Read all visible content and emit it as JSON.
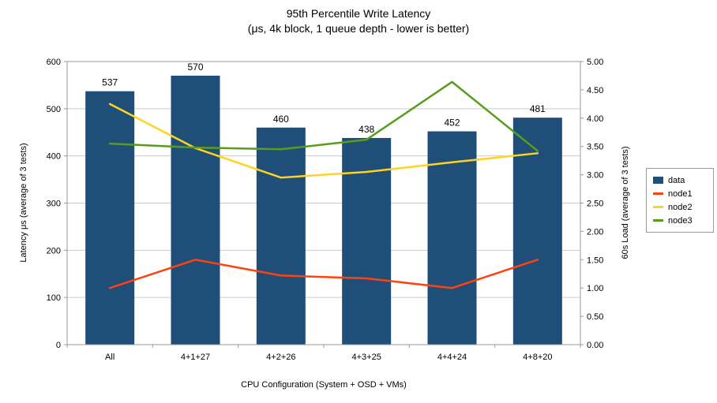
{
  "title": "95th Percentile Write Latency",
  "subtitle": "(μs, 4k block, 1 queue depth - lower is better)",
  "chart_data": {
    "type": "bar",
    "combo": "bar+line",
    "categories": [
      "All",
      "4+1+27",
      "4+2+26",
      "4+3+25",
      "4+4+24",
      "4+8+20"
    ],
    "series": [
      {
        "name": "data",
        "type": "bar",
        "axis": "left",
        "color": "#1F4E79",
        "values": [
          537,
          570,
          460,
          438,
          452,
          481
        ]
      },
      {
        "name": "node1",
        "type": "line",
        "axis": "right",
        "color": "#FF420E",
        "values": [
          1.0,
          1.5,
          1.22,
          1.17,
          1.0,
          1.5
        ]
      },
      {
        "name": "node2",
        "type": "line",
        "axis": "right",
        "color": "#FFD320",
        "values": [
          4.25,
          3.47,
          2.95,
          3.05,
          3.22,
          3.38
        ]
      },
      {
        "name": "node3",
        "type": "line",
        "axis": "right",
        "color": "#579D1C",
        "values": [
          3.55,
          3.48,
          3.45,
          3.62,
          4.64,
          3.42
        ]
      }
    ],
    "left_axis": {
      "title": "Latency μs (average of 3 tests)",
      "min": 0,
      "max": 600,
      "step": 100,
      "decimals": 0
    },
    "right_axis": {
      "title": "60s Load (average of 3 tests)",
      "min": 0,
      "max": 5,
      "step": 0.5,
      "decimals": 2
    },
    "x_axis": {
      "title": "CPU Configuration (System + OSD + VMs)"
    },
    "legend": {
      "position": "right",
      "items": [
        {
          "label": "data",
          "color": "#1F4E79",
          "key": "box"
        },
        {
          "label": "node1",
          "color": "#FF420E",
          "key": "line"
        },
        {
          "label": "node2",
          "color": "#FFD320",
          "key": "line"
        },
        {
          "label": "node3",
          "color": "#579D1C",
          "key": "line"
        }
      ]
    },
    "grid": "horizontal",
    "colors": {
      "grid": "#cccccc",
      "axis": "#999999",
      "text": "#000000",
      "background": "#ffffff"
    }
  }
}
